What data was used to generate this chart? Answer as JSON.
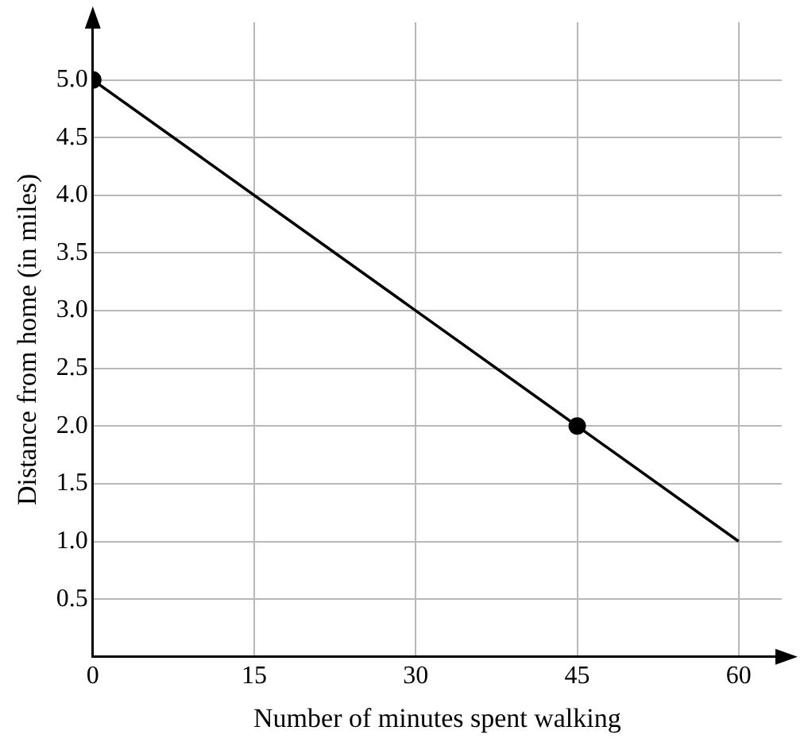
{
  "chart_data": {
    "type": "line",
    "xlabel": "Number of minutes spent walking",
    "ylabel": "Distance from home (in miles)",
    "series": [
      {
        "type": "line",
        "color": "#000000",
        "x": [
          0,
          60
        ],
        "values": [
          5,
          1
        ],
        "marker": "none"
      },
      {
        "type": "scatter",
        "color": "#000000",
        "x": [
          0,
          45
        ],
        "values": [
          5,
          2
        ],
        "marker": "circle"
      }
    ],
    "xlim": [
      0,
      64
    ],
    "xticks": [
      0,
      15,
      30,
      45,
      60
    ],
    "ylim": [
      0,
      5.5
    ],
    "yticks": [
      {
        "value": 0.5,
        "label": "0.5"
      },
      {
        "value": 1,
        "label": "1.0"
      },
      {
        "value": 1.5,
        "label": "1.5"
      },
      {
        "value": 2,
        "label": "2.0"
      },
      {
        "value": 2.5,
        "label": "2.5"
      },
      {
        "value": 3,
        "label": "3.0"
      },
      {
        "value": 3.5,
        "label": "3.5"
      },
      {
        "value": 4,
        "label": "4.0"
      },
      {
        "value": 4.5,
        "label": "4.5"
      },
      {
        "value": 5,
        "label": "5.0"
      }
    ],
    "grid": true,
    "legend": false
  }
}
